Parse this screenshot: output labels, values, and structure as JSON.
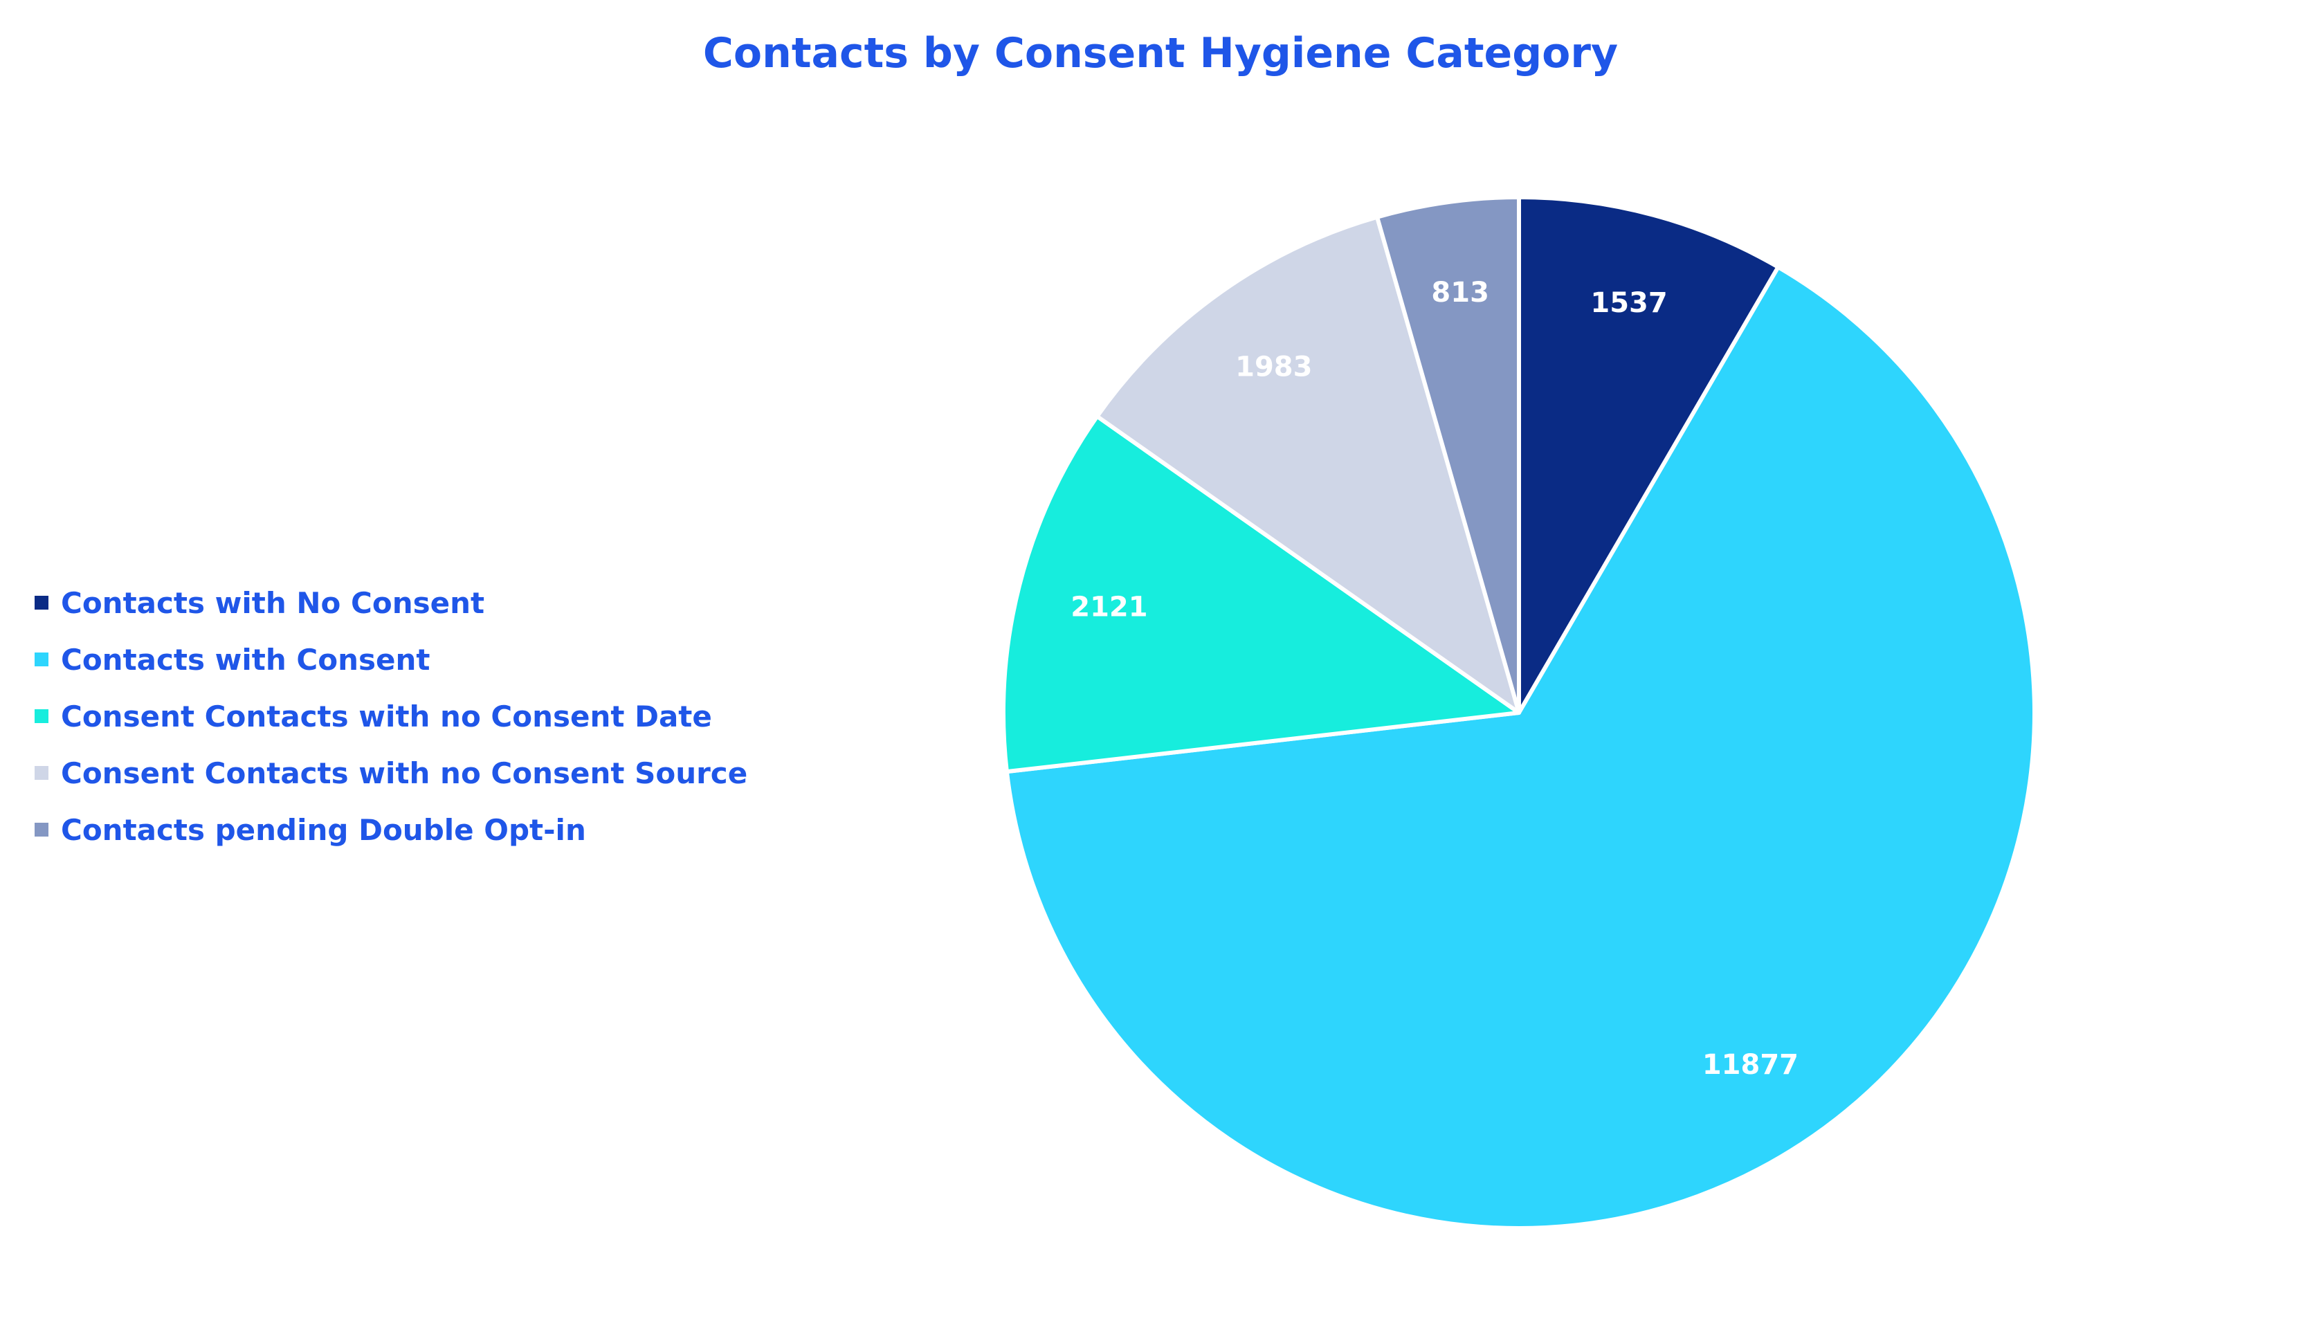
{
  "chart_data": {
    "type": "pie",
    "title": "Contacts by Consent Hygiene Category",
    "legend_position": "left",
    "slices": [
      {
        "label": "Contacts with No Consent",
        "value": 1537,
        "color": "#0a2b85"
      },
      {
        "label": "Contacts with Consent",
        "value": 11877,
        "color": "#2ed5fd"
      },
      {
        "label": "Consent Contacts with no Consent Date",
        "value": 2121,
        "color": "#17eddd"
      },
      {
        "label": "Consent Contacts with no Consent Source",
        "value": 1983,
        "color": "#cfd6e7"
      },
      {
        "label": "Contacts pending Double Opt-in",
        "value": 813,
        "color": "#8497c3"
      }
    ]
  }
}
